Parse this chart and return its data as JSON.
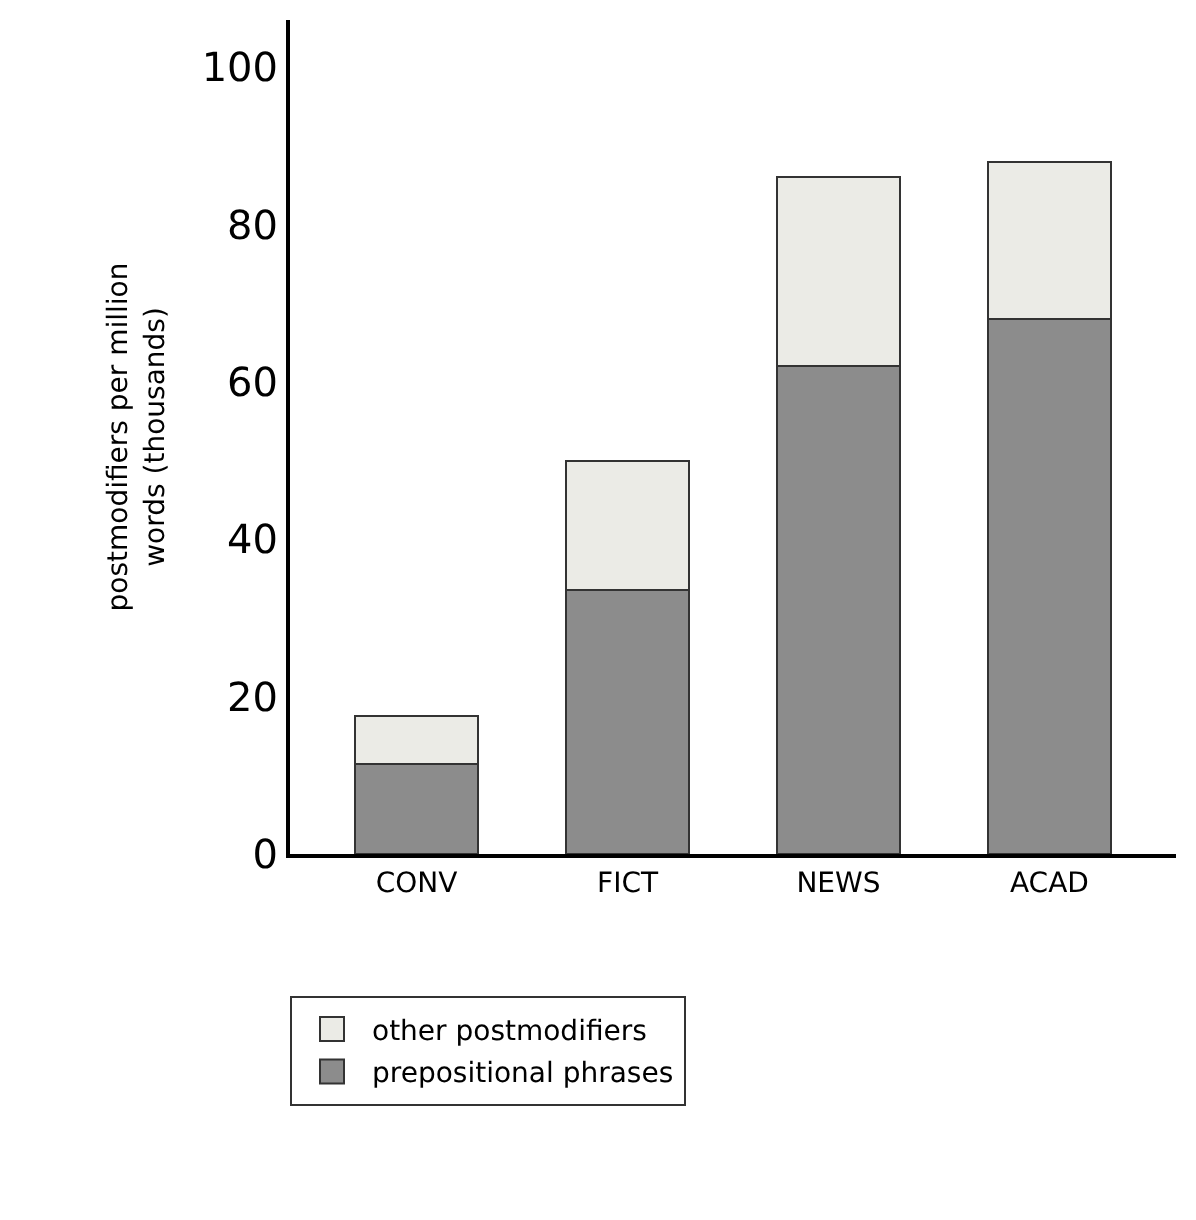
{
  "chart_data": {
    "type": "bar",
    "stacked": true,
    "ylabel": "postmodifiers per million\nwords (thousands)",
    "categories": [
      "CONV",
      "FICT",
      "NEWS",
      "ACAD"
    ],
    "series": [
      {
        "name": "prepositional phrases",
        "color": "#8c8c8c",
        "values": [
          11.5,
          33.5,
          62,
          68
        ]
      },
      {
        "name": "other postmodifiers",
        "color": "#ebebe6",
        "values": [
          6,
          16.5,
          24,
          20
        ]
      }
    ],
    "ylim": [
      0,
      106
    ],
    "yticks": [
      0,
      20,
      40,
      60,
      80,
      100
    ],
    "legend": "bottom"
  }
}
